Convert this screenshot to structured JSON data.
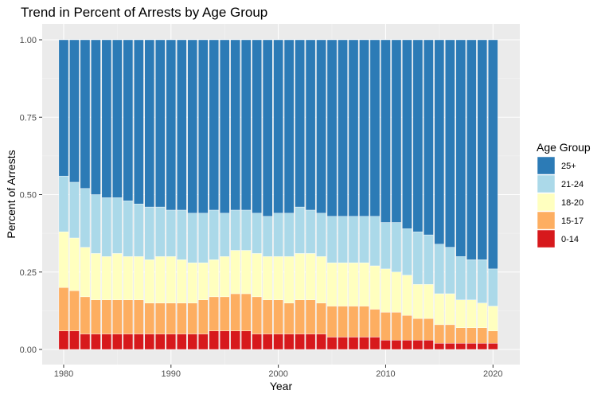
{
  "chart_data": {
    "type": "bar",
    "stacked": true,
    "title": "Trend in Percent of Arrests by Age Group",
    "xlabel": "Year",
    "ylabel": "Percent of Arrests",
    "ylim": [
      0,
      1
    ],
    "xlim": [
      1978,
      2022.5
    ],
    "yticks": [
      "0.00",
      "0.25",
      "0.50",
      "0.75",
      "1.00"
    ],
    "xticks": [
      "1980",
      "1990",
      "2000",
      "2010",
      "2020"
    ],
    "grid": true,
    "legend_title": "Age Group",
    "legend_position": "right",
    "categories": [
      1980,
      1981,
      1982,
      1983,
      1984,
      1985,
      1986,
      1987,
      1988,
      1989,
      1990,
      1991,
      1992,
      1993,
      1994,
      1995,
      1996,
      1997,
      1998,
      1999,
      2000,
      2001,
      2002,
      2003,
      2004,
      2005,
      2006,
      2007,
      2008,
      2009,
      2010,
      2011,
      2012,
      2013,
      2014,
      2015,
      2016,
      2017,
      2018,
      2019,
      2020
    ],
    "series": [
      {
        "name": "0-14",
        "color": "#d7191c",
        "values": [
          0.06,
          0.06,
          0.05,
          0.05,
          0.05,
          0.05,
          0.05,
          0.05,
          0.05,
          0.05,
          0.05,
          0.05,
          0.05,
          0.05,
          0.06,
          0.06,
          0.06,
          0.06,
          0.05,
          0.05,
          0.05,
          0.05,
          0.05,
          0.05,
          0.05,
          0.04,
          0.04,
          0.04,
          0.04,
          0.04,
          0.03,
          0.03,
          0.03,
          0.03,
          0.03,
          0.02,
          0.02,
          0.02,
          0.02,
          0.02,
          0.02
        ]
      },
      {
        "name": "15-17",
        "color": "#fdae61",
        "values": [
          0.14,
          0.13,
          0.12,
          0.11,
          0.11,
          0.11,
          0.11,
          0.11,
          0.1,
          0.1,
          0.1,
          0.1,
          0.1,
          0.11,
          0.11,
          0.11,
          0.12,
          0.12,
          0.12,
          0.11,
          0.11,
          0.1,
          0.11,
          0.11,
          0.1,
          0.1,
          0.1,
          0.1,
          0.1,
          0.09,
          0.09,
          0.09,
          0.08,
          0.07,
          0.07,
          0.06,
          0.06,
          0.05,
          0.05,
          0.05,
          0.04
        ]
      },
      {
        "name": "18-20",
        "color": "#ffffbf",
        "values": [
          0.18,
          0.17,
          0.16,
          0.15,
          0.14,
          0.15,
          0.14,
          0.14,
          0.14,
          0.15,
          0.15,
          0.14,
          0.13,
          0.12,
          0.12,
          0.13,
          0.14,
          0.14,
          0.14,
          0.14,
          0.14,
          0.15,
          0.15,
          0.15,
          0.15,
          0.14,
          0.14,
          0.14,
          0.14,
          0.14,
          0.14,
          0.13,
          0.13,
          0.11,
          0.11,
          0.1,
          0.1,
          0.09,
          0.09,
          0.08,
          0.08
        ]
      },
      {
        "name": "21-24",
        "color": "#abd9e9",
        "values": [
          0.18,
          0.18,
          0.19,
          0.19,
          0.19,
          0.18,
          0.18,
          0.17,
          0.17,
          0.16,
          0.15,
          0.16,
          0.16,
          0.16,
          0.16,
          0.14,
          0.13,
          0.13,
          0.13,
          0.13,
          0.14,
          0.14,
          0.15,
          0.14,
          0.14,
          0.15,
          0.15,
          0.15,
          0.15,
          0.16,
          0.15,
          0.16,
          0.15,
          0.17,
          0.16,
          0.16,
          0.15,
          0.14,
          0.13,
          0.14,
          0.12
        ]
      },
      {
        "name": "25+",
        "color": "#2c7bb6",
        "values": [
          0.44,
          0.46,
          0.48,
          0.5,
          0.51,
          0.51,
          0.52,
          0.53,
          0.54,
          0.54,
          0.55,
          0.55,
          0.56,
          0.56,
          0.55,
          0.56,
          0.55,
          0.55,
          0.56,
          0.57,
          0.56,
          0.56,
          0.54,
          0.55,
          0.56,
          0.57,
          0.57,
          0.57,
          0.57,
          0.57,
          0.59,
          0.59,
          0.61,
          0.62,
          0.63,
          0.66,
          0.67,
          0.7,
          0.71,
          0.71,
          0.74
        ]
      }
    ]
  }
}
